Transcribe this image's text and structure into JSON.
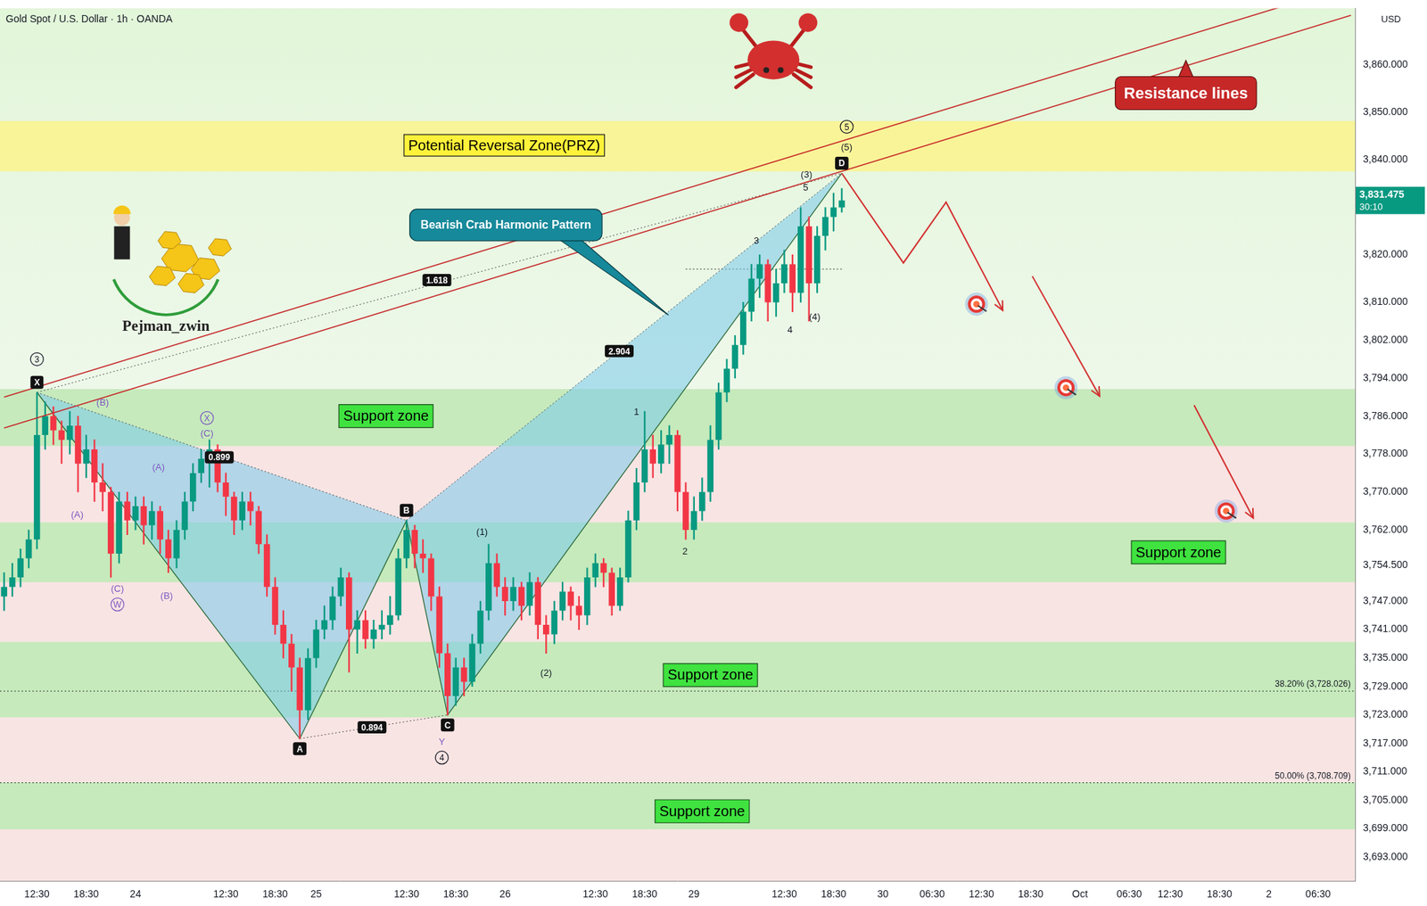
{
  "chart_data": {
    "type": "candlestick",
    "title": "Gold Spot / U.S. Dollar · 1h · OANDA",
    "y_label": "USD",
    "grid": false,
    "ylim": [
      3688,
      3872
    ],
    "yticks": [
      {
        "value": 3860,
        "label": "3,860.000"
      },
      {
        "value": 3850,
        "label": "3,850.000"
      },
      {
        "value": 3840,
        "label": "3,840.000"
      },
      {
        "value": 3820,
        "label": "3,820.000"
      },
      {
        "value": 3810,
        "label": "3,810.000"
      },
      {
        "value": 3802,
        "label": "3,802.000"
      },
      {
        "value": 3794,
        "label": "3,794.000"
      },
      {
        "value": 3786,
        "label": "3,786.000"
      },
      {
        "value": 3778,
        "label": "3,778.000"
      },
      {
        "value": 3770,
        "label": "3,770.000"
      },
      {
        "value": 3762,
        "label": "3,762.000"
      },
      {
        "value": 3754.5,
        "label": "3,754.500"
      },
      {
        "value": 3747,
        "label": "3,747.000"
      },
      {
        "value": 3741,
        "label": "3,741.000"
      },
      {
        "value": 3735,
        "label": "3,735.000"
      },
      {
        "value": 3729,
        "label": "3,729.000"
      },
      {
        "value": 3723,
        "label": "3,723.000"
      },
      {
        "value": 3717,
        "label": "3,717.000"
      },
      {
        "value": 3711,
        "label": "3,711.000"
      },
      {
        "value": 3705,
        "label": "3,705.000"
      },
      {
        "value": 3699,
        "label": "3,699.000"
      },
      {
        "value": 3693,
        "label": "3,693.000"
      }
    ],
    "categories": [
      null,
      null,
      null,
      null,
      "12:30",
      null,
      null,
      null,
      null,
      null,
      "18:30",
      null,
      null,
      null,
      null,
      null,
      "24",
      null,
      null,
      null,
      null,
      null,
      null,
      null,
      null,
      null,
      null,
      "12:30",
      null,
      null,
      null,
      null,
      null,
      "18:30",
      null,
      null,
      null,
      null,
      "25",
      null,
      null,
      null,
      null,
      null,
      null,
      null,
      null,
      null,
      null,
      "12:30",
      null,
      null,
      null,
      null,
      null,
      "18:30",
      null,
      null,
      null,
      null,
      null,
      "26",
      null,
      null,
      null,
      null,
      null,
      null,
      null,
      null,
      null,
      null,
      "12:30",
      null,
      null,
      null,
      null,
      null,
      "18:30",
      null,
      null,
      null,
      null,
      null,
      "29",
      null,
      null,
      null,
      null,
      null,
      null,
      null,
      null,
      null,
      null,
      "12:30",
      null,
      null,
      null,
      null,
      null,
      "18:30",
      null,
      null,
      null,
      null,
      null,
      "30",
      null,
      null,
      null,
      null,
      null,
      "06:30",
      null,
      null,
      null,
      null,
      null,
      "12:30",
      null,
      null,
      null,
      null,
      null,
      "18:30",
      null,
      null,
      null,
      null,
      null,
      "Oct",
      null,
      null,
      null,
      null,
      null,
      "06:30",
      null,
      null,
      null,
      null,
      "12:30",
      null,
      null,
      null,
      null,
      null,
      "18:30",
      null,
      null,
      null,
      null,
      null,
      "2",
      null,
      null,
      null,
      null,
      null,
      "06:30",
      null,
      null,
      null,
      null
    ],
    "open": [
      3748,
      3750,
      3752,
      3756,
      3760,
      3782,
      3786,
      3783,
      3781,
      3784,
      3776,
      3779,
      3772,
      3770,
      3757,
      3768,
      3764,
      3767,
      3763,
      3766,
      3760,
      3756,
      3762,
      3768,
      3774,
      3777,
      3779,
      3772,
      3769,
      3764,
      3768,
      3766,
      3759,
      3750,
      3742,
      3738,
      3733,
      3724,
      3735,
      3741,
      3743,
      3748,
      3752,
      3741,
      3743,
      3739,
      3741,
      3742,
      3744,
      3756,
      3762,
      3757,
      3756,
      3748,
      3736,
      3727,
      3733,
      3730,
      3738,
      3745,
      3755,
      3750,
      3747,
      3750,
      3746,
      3751,
      3742,
      3740,
      3745,
      3749,
      3746,
      3744,
      3752,
      3755,
      3753,
      3746,
      3752,
      3764,
      3772,
      3779,
      3776,
      3780,
      3782,
      3770,
      3762,
      3766,
      3770,
      3781,
      3791,
      3796,
      3801,
      3808,
      3815,
      3818,
      3810,
      3814,
      3818,
      3812,
      3826,
      3814,
      3824,
      3828,
      3830,
      null,
      null,
      null,
      null,
      null,
      null,
      null,
      null,
      null,
      null,
      null,
      null,
      null,
      null,
      null,
      null,
      null,
      null,
      null,
      null,
      null,
      null,
      null,
      null,
      null,
      null,
      null,
      null,
      null,
      null,
      null,
      null,
      null,
      null,
      null,
      null,
      null,
      null,
      null,
      null,
      null,
      null,
      null,
      null,
      null,
      null,
      null,
      null,
      null,
      null,
      null,
      null,
      null,
      null,
      null,
      null,
      null,
      null,
      null,
      null,
      null,
      null
    ],
    "high": [
      3753,
      3755,
      3758,
      3762,
      3791,
      3789,
      3788,
      3785,
      3787,
      3786,
      3782,
      3781,
      3776,
      3771,
      3770,
      3770,
      3769,
      3769,
      3768,
      3767,
      3762,
      3764,
      3770,
      3776,
      3779,
      3781,
      3780,
      3774,
      3770,
      3770,
      3770,
      3767,
      3761,
      3752,
      3745,
      3740,
      3735,
      3737,
      3743,
      3746,
      3750,
      3754,
      3753,
      3745,
      3745,
      3743,
      3745,
      3748,
      3758,
      3764,
      3763,
      3760,
      3757,
      3750,
      3738,
      3735,
      3735,
      3740,
      3747,
      3759,
      3757,
      3752,
      3752,
      3751,
      3753,
      3752,
      3744,
      3747,
      3751,
      3750,
      3748,
      3754,
      3757,
      3756,
      3754,
      3754,
      3766,
      3775,
      3787,
      3782,
      3783,
      3784,
      3783,
      3772,
      3769,
      3773,
      3784,
      3793,
      3798,
      3803,
      3810,
      3818,
      3820,
      3819,
      3817,
      3821,
      3820,
      3830,
      3828,
      3826,
      3830,
      3833,
      3834,
      null,
      null,
      null,
      null,
      null,
      null,
      null,
      null,
      null,
      null,
      null,
      null,
      null,
      null,
      null,
      null,
      null,
      null,
      null,
      null,
      null,
      null,
      null,
      null,
      null,
      null,
      null,
      null,
      null,
      null,
      null,
      null,
      null,
      null,
      null,
      null,
      null,
      null,
      null,
      null,
      null,
      null,
      null,
      null,
      null,
      null,
      null,
      null,
      null,
      null,
      null,
      null,
      null,
      null,
      null,
      null,
      null,
      null,
      null,
      null,
      null,
      null
    ],
    "low": [
      3745,
      3748,
      3750,
      3754,
      3758,
      3779,
      3780,
      3776,
      3778,
      3770,
      3773,
      3768,
      3766,
      3752,
      3755,
      3761,
      3762,
      3759,
      3760,
      3757,
      3753,
      3754,
      3760,
      3766,
      3772,
      3771,
      3770,
      3765,
      3761,
      3762,
      3763,
      3757,
      3748,
      3740,
      3735,
      3728,
      3718,
      3722,
      3733,
      3739,
      3741,
      3746,
      3732,
      3736,
      3737,
      3737,
      3739,
      3740,
      3743,
      3754,
      3754,
      3753,
      3745,
      3733,
      3723,
      3725,
      3727,
      3729,
      3736,
      3743,
      3748,
      3744,
      3745,
      3743,
      3744,
      3739,
      3736,
      3738,
      3743,
      3743,
      3741,
      3742,
      3750,
      3750,
      3744,
      3745,
      3751,
      3762,
      3770,
      3773,
      3774,
      3776,
      3766,
      3760,
      3760,
      3764,
      3768,
      3779,
      3789,
      3794,
      3799,
      3806,
      3811,
      3806,
      3807,
      3812,
      3808,
      3810,
      3806,
      3812,
      3821,
      3825,
      3829,
      null,
      null,
      null,
      null,
      null,
      null,
      null,
      null,
      null,
      null,
      null,
      null,
      null,
      null,
      null,
      null,
      null,
      null,
      null,
      null,
      null,
      null,
      null,
      null,
      null,
      null,
      null,
      null,
      null,
      null,
      null,
      null,
      null,
      null,
      null,
      null,
      null,
      null,
      null,
      null,
      null,
      null,
      null,
      null,
      null,
      null,
      null,
      null,
      null,
      null,
      null,
      null,
      null,
      null,
      null,
      null,
      null,
      null,
      null,
      null,
      null,
      null
    ],
    "close": [
      3750,
      3752,
      3756,
      3760,
      3782,
      3786,
      3783,
      3781,
      3784,
      3776,
      3779,
      3772,
      3770,
      3757,
      3768,
      3764,
      3767,
      3763,
      3766,
      3760,
      3756,
      3762,
      3768,
      3774,
      3777,
      3779,
      3772,
      3769,
      3764,
      3768,
      3766,
      3759,
      3750,
      3742,
      3738,
      3733,
      3724,
      3735,
      3741,
      3743,
      3748,
      3752,
      3741,
      3743,
      3739,
      3741,
      3742,
      3744,
      3756,
      3762,
      3757,
      3756,
      3748,
      3736,
      3727,
      3733,
      3730,
      3738,
      3745,
      3755,
      3750,
      3747,
      3750,
      3746,
      3751,
      3742,
      3740,
      3745,
      3749,
      3746,
      3744,
      3752,
      3755,
      3753,
      3746,
      3752,
      3764,
      3772,
      3779,
      3776,
      3780,
      3782,
      3770,
      3762,
      3766,
      3770,
      3781,
      3791,
      3796,
      3801,
      3808,
      3815,
      3818,
      3810,
      3814,
      3818,
      3812,
      3826,
      3814,
      3824,
      3828,
      3830,
      3831.475,
      null,
      null,
      null,
      null,
      null,
      null,
      null,
      null,
      null,
      null,
      null,
      null,
      null,
      null,
      null,
      null,
      null,
      null,
      null,
      null,
      null,
      null,
      null,
      null,
      null,
      null,
      null,
      null,
      null,
      null,
      null,
      null,
      null,
      null,
      null,
      null,
      null,
      null,
      null,
      null,
      null,
      null,
      null,
      null,
      null,
      null,
      null,
      null,
      null,
      null,
      null,
      null,
      null,
      null,
      null,
      null,
      null,
      null,
      null,
      null,
      null,
      null
    ],
    "last_price": {
      "value": 3831.475,
      "label": "3,831.475",
      "countdown": "30:10"
    },
    "zones": [
      {
        "label": "Support zone",
        "range": [
          3779.7,
          3791.7
        ],
        "label_at": [
          46.5,
          3786
        ]
      },
      {
        "label": "Support zone",
        "range": [
          3751.0,
          3763.6
        ],
        "label_at": [
          143,
          3757.3
        ]
      },
      {
        "label": "Support zone",
        "range": [
          3722.5,
          3738.4
        ],
        "label_at": [
          86,
          3731.4
        ]
      },
      {
        "label": "Support zone",
        "range": [
          3698.9,
          3708.8
        ],
        "label_at": [
          85,
          3702.7
        ]
      }
    ],
    "prz": {
      "label": "Potential Reversal Zone(PRZ)",
      "range": [
        3837.6,
        3848.2
      ],
      "label_at": [
        60.9,
        3843.1
      ]
    },
    "fib_levels": [
      {
        "value": 3728.026,
        "label": "38.20% (3,728.026)"
      },
      {
        "value": 3708.709,
        "label": "50.00% (3,708.709)"
      }
    ],
    "pattern": {
      "name": "Bearish Crab Harmonic Pattern",
      "name_at": [
        61.1,
        3826.3
      ],
      "name_points_to": [
        80.9,
        3807.3
      ],
      "points": [
        {
          "label": "X",
          "at": [
            4,
            3791
          ]
        },
        {
          "label": "A",
          "at": [
            36,
            3718
          ]
        },
        {
          "label": "B",
          "at": [
            49,
            3764
          ]
        },
        {
          "label": "C",
          "at": [
            54,
            3723
          ]
        },
        {
          "label": "D",
          "at": [
            102,
            3837.2
          ]
        }
      ]
    },
    "ratios": [
      {
        "value": 0.899,
        "line": [
          "X",
          "B"
        ],
        "at": [
          26.2,
          3777.3
        ]
      },
      {
        "value": 0.894,
        "line": [
          "A",
          "C"
        ],
        "at": [
          44.8,
          3720.4
        ]
      },
      {
        "value": 2.904,
        "line": [
          "B",
          "D"
        ],
        "at": [
          74.9,
          3799.7
        ]
      },
      {
        "value": 1.618,
        "line": [
          "X",
          "D"
        ],
        "at": [
          52.7,
          3814.7
        ]
      }
    ],
    "resistance": {
      "label": "Resistance lines",
      "label_at": [
        143.9,
        3854.1
      ],
      "points_to": [
        143.9,
        3861
      ],
      "lines": [
        [
          [
            0,
            3790
          ],
          [
            164,
            3876.8
          ]
        ],
        [
          [
            0,
            3783.5
          ],
          [
            164,
            3870.5
          ]
        ]
      ]
    },
    "projection": [
      [
        [
          102,
          3837.2
        ],
        [
          109.5,
          3818.3
        ],
        [
          114.7,
          3831.1
        ],
        [
          121.6,
          3808.3
        ]
      ],
      [
        [
          125.2,
          3815.5
        ],
        [
          133.4,
          3790.2
        ]
      ],
      [
        [
          144.9,
          3788.3
        ],
        [
          152.1,
          3764.5
        ]
      ]
    ],
    "targets": [
      [
        118.4,
        3809.6
      ],
      [
        129.3,
        3792
      ],
      [
        148.8,
        3766
      ]
    ],
    "poc": {
      "value": 3817,
      "from": 83,
      "to": 102
    },
    "wave_labels": [
      {
        "text": "3",
        "at": [
          4,
          3798
        ],
        "marker": "circle"
      },
      {
        "text": "(B)",
        "at": [
          12,
          3789
        ],
        "color": "#7e57c2"
      },
      {
        "text": "(A)",
        "at": [
          18.8,
          3775.3
        ],
        "color": "#7e57c2"
      },
      {
        "text": "(A)",
        "at": [
          8.9,
          3765.3
        ],
        "color": "#7e57c2"
      },
      {
        "text": "(C)",
        "at": [
          13.8,
          3749.7
        ],
        "color": "#7e57c2"
      },
      {
        "text": "W",
        "at": [
          13.8,
          3746.3
        ],
        "color": "#7e57c2",
        "marker": "circle"
      },
      {
        "text": "(B)",
        "at": [
          19.8,
          3748.1
        ],
        "color": "#7e57c2"
      },
      {
        "text": "X",
        "at": [
          24.7,
          3785.6
        ],
        "color": "#7e57c2",
        "marker": "circle"
      },
      {
        "text": "(C)",
        "at": [
          24.7,
          3782.4
        ],
        "color": "#7e57c2"
      },
      {
        "text": "Y",
        "at": [
          53.3,
          3717.3
        ],
        "color": "#7e57c2"
      },
      {
        "text": "4",
        "at": [
          53.3,
          3714
        ],
        "marker": "circle"
      },
      {
        "text": "(1)",
        "at": [
          58.2,
          3761.7
        ]
      },
      {
        "text": "(2)",
        "at": [
          66,
          3732
        ]
      },
      {
        "text": "1",
        "at": [
          77,
          3787
        ]
      },
      {
        "text": "2",
        "at": [
          82.9,
          3757.5
        ]
      },
      {
        "text": "3",
        "at": [
          91.6,
          3823.1
        ]
      },
      {
        "text": "4",
        "at": [
          95.7,
          3804.3
        ]
      },
      {
        "text": "(4)",
        "at": [
          98.7,
          3806.9
        ]
      },
      {
        "text": "5",
        "at": [
          97.6,
          3834.3
        ]
      },
      {
        "text": "(3)",
        "at": [
          97.7,
          3837
        ]
      },
      {
        "text": "(5)",
        "at": [
          102.6,
          3842.7
        ]
      },
      {
        "text": "5",
        "at": [
          102.6,
          3847
        ],
        "marker": "circle"
      }
    ],
    "author": {
      "text": "Pejman_zwin",
      "at": [
        19.7,
        3804.8
      ]
    }
  }
}
